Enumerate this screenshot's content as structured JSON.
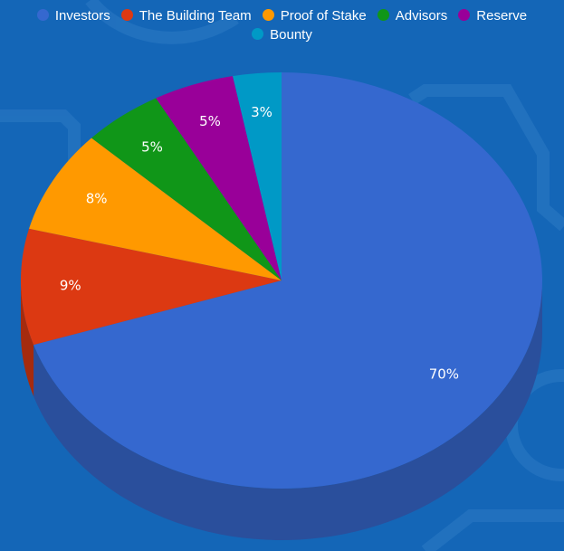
{
  "chart_data": {
    "type": "pie",
    "title": "",
    "legend_position": "top",
    "slices": [
      {
        "name": "Investors",
        "value": 70,
        "label": "70%",
        "color": "#3568cf",
        "side_color": "#2a4f9c"
      },
      {
        "name": "The Building Team",
        "value": 9,
        "label": "9%",
        "color": "#dc3912",
        "side_color": "#a52b0e"
      },
      {
        "name": "Proof of Stake",
        "value": 8,
        "label": "8%",
        "color": "#ff9900",
        "side_color": "#bf7300"
      },
      {
        "name": "Advisors",
        "value": 5,
        "label": "5%",
        "color": "#109618",
        "side_color": "#0c7012"
      },
      {
        "name": "Reserve",
        "value": 5,
        "label": "5%",
        "color": "#990099",
        "side_color": "#730073"
      },
      {
        "name": "Bounty",
        "value": 3,
        "label": "3%",
        "color": "#0099c6",
        "side_color": "#007394"
      }
    ]
  },
  "colors": {
    "background": "#1466b7",
    "decoration": "#2a79c4"
  }
}
